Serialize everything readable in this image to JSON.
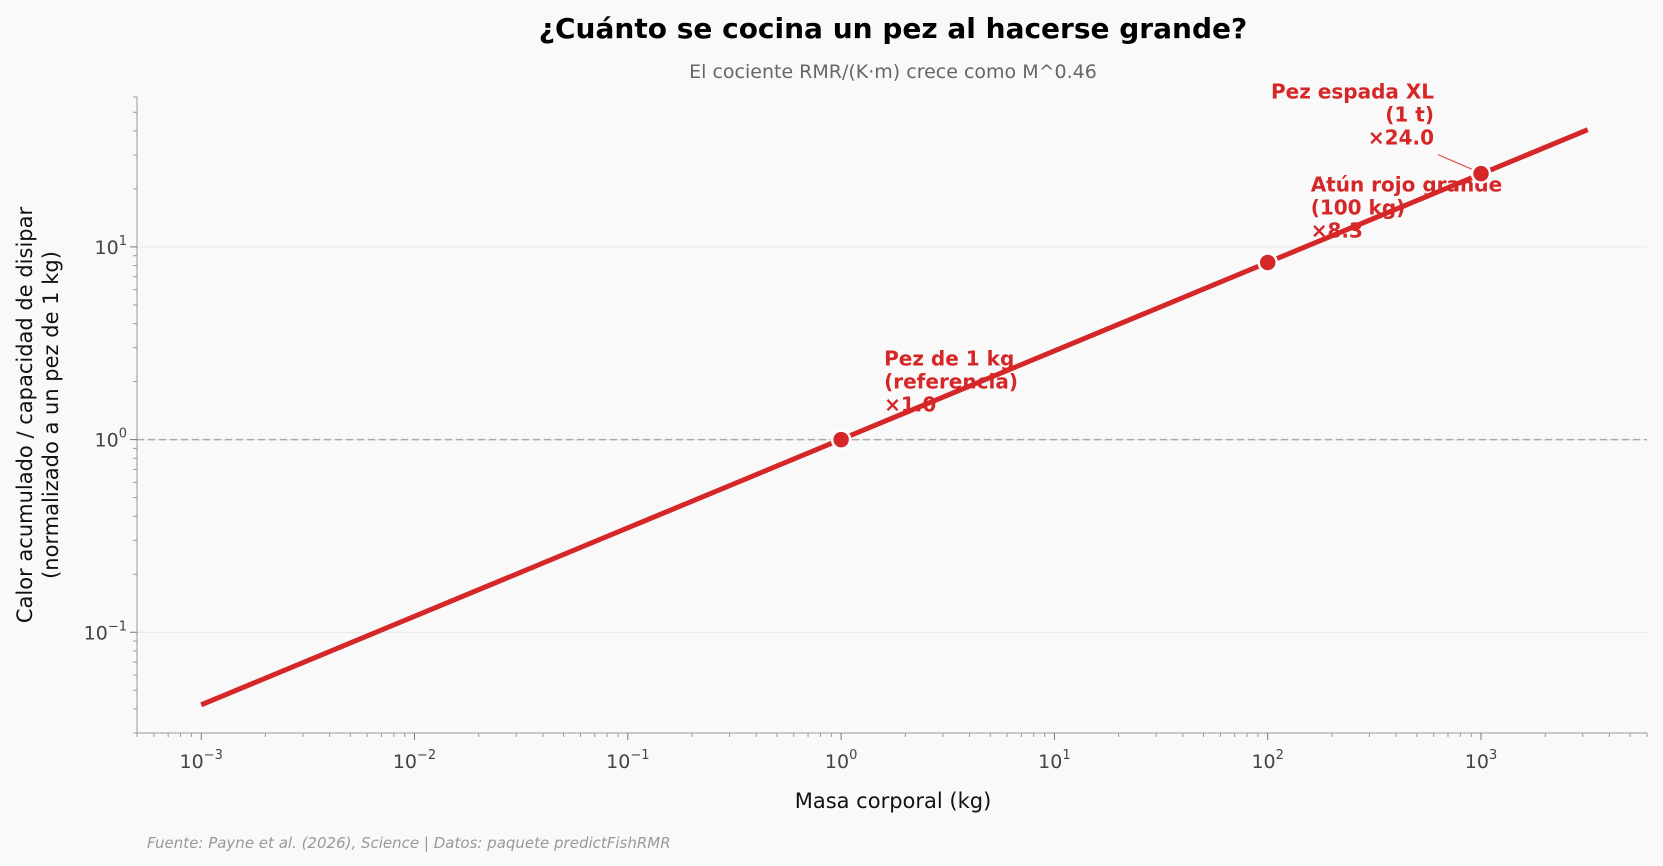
{
  "chart_data": {
    "type": "line",
    "title": "¿Cuánto se cocina un pez al hacerse grande?",
    "subtitle": "El cociente RMR/(K·m) crece como M^0.46",
    "xlabel": "Masa corporal (kg)",
    "ylabel_line1": "Calor acumulado / capacidad de disipar",
    "ylabel_line2": "(normalizado a un pez de 1 kg)",
    "xscale": "log",
    "yscale": "log",
    "xlim": [
      0.0005,
      6000
    ],
    "ylim": [
      0.03,
      60
    ],
    "x_ticks": [
      {
        "base": "10",
        "exp": "−3",
        "value": 0.001
      },
      {
        "base": "10",
        "exp": "−2",
        "value": 0.01
      },
      {
        "base": "10",
        "exp": "−1",
        "value": 0.1
      },
      {
        "base": "10",
        "exp": "0",
        "value": 1
      },
      {
        "base": "10",
        "exp": "1",
        "value": 10
      },
      {
        "base": "10",
        "exp": "2",
        "value": 100
      },
      {
        "base": "10",
        "exp": "3",
        "value": 1000
      }
    ],
    "y_ticks": [
      {
        "base": "10",
        "exp": "−1",
        "value": 0.1
      },
      {
        "base": "10",
        "exp": "0",
        "value": 1
      },
      {
        "base": "10",
        "exp": "1",
        "value": 10
      }
    ],
    "grid": "horizontal",
    "reference_line": 1,
    "series": [
      {
        "color": "#d62728",
        "exponent": 0.46,
        "x": [
          0.001,
          3162
        ],
        "y": [
          0.042,
          40.6
        ]
      }
    ],
    "points": [
      {
        "x": 1,
        "y": 1.0,
        "lines": [
          "Pez de 1 kg",
          "(referencia)",
          "×1.0"
        ],
        "align": "start"
      },
      {
        "x": 100,
        "y": 8.3,
        "lines": [
          "Atún rojo grande",
          "(100 kg)",
          "×8.3"
        ],
        "align": "start"
      },
      {
        "x": 1000,
        "y": 24.0,
        "lines": [
          "Pez espada XL",
          "(1 t)",
          "×24.0"
        ],
        "align": "end"
      }
    ],
    "source": "Fuente: Payne et al. (2026), Science | Datos: paquete predictFishRMR"
  }
}
